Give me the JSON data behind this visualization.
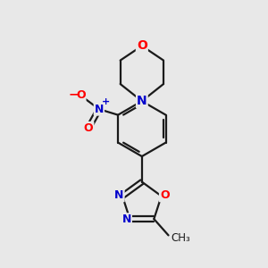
{
  "bg_color": "#e8e8e8",
  "bond_color": "#1a1a1a",
  "O_color": "#ff0000",
  "N_color": "#0000cc",
  "C_color": "#1a1a1a",
  "lw": 1.6,
  "figsize": [
    3.0,
    3.0
  ],
  "dpi": 100,
  "xlim": [
    0,
    10
  ],
  "ylim": [
    0,
    10
  ]
}
